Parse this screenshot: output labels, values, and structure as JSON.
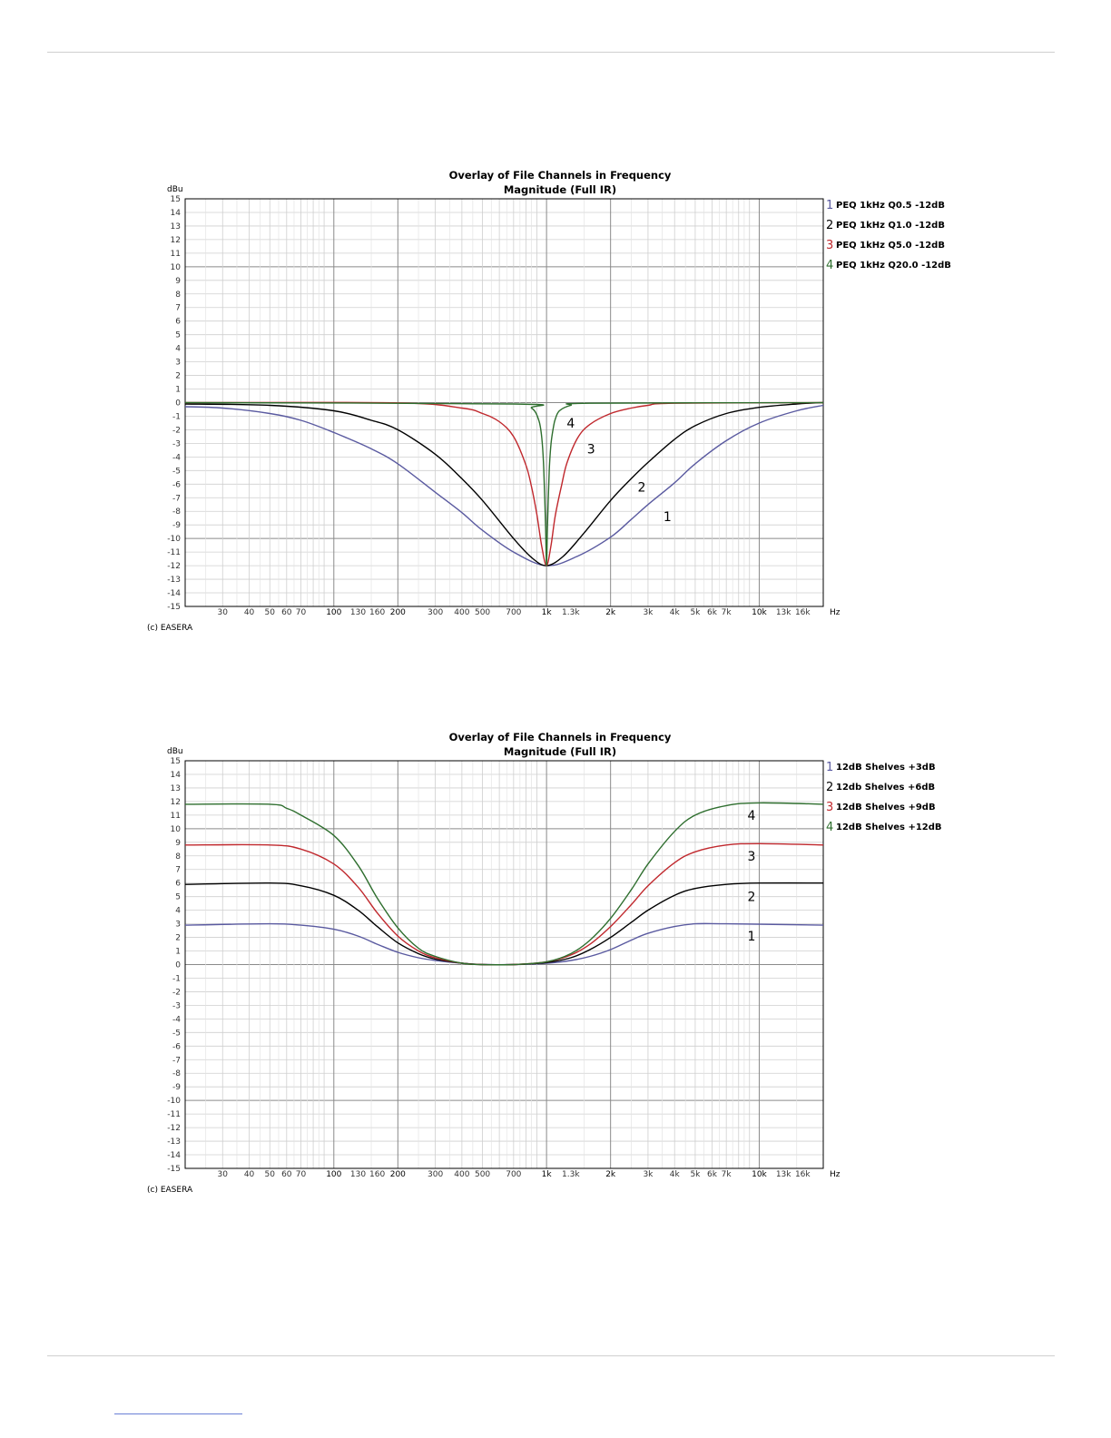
{
  "chart_data": [
    {
      "type": "line",
      "title": "Overlay of File Channels in Frequency",
      "subtitle": "Magnitude (Full IR)",
      "ylabel": "dBu",
      "xlabel": "",
      "x_unit": "Hz",
      "x_scale": "log",
      "xlim": [
        20,
        20000
      ],
      "ylim": [
        -15,
        15
      ],
      "grid": true,
      "legend_position": "right",
      "credit": "(c) EASERA",
      "y_ticks": [
        "15",
        "14",
        "13",
        "12",
        "11",
        "10",
        "9",
        "8",
        "7",
        "6",
        "5",
        "4",
        "3",
        "2",
        "1",
        "0",
        "-1",
        "-2",
        "-3",
        "-4",
        "-5",
        "-6",
        "-7",
        "-8",
        "-9",
        "-10",
        "-11",
        "-12",
        "-13",
        "-14",
        "-15"
      ],
      "x_ticks": [
        {
          "v": 30,
          "label": "30"
        },
        {
          "v": 40,
          "label": "40"
        },
        {
          "v": 50,
          "label": "50"
        },
        {
          "v": 60,
          "label": "60"
        },
        {
          "v": 70,
          "label": "70"
        },
        {
          "v": 100,
          "label": "100",
          "major": true
        },
        {
          "v": 130,
          "label": "130"
        },
        {
          "v": 160,
          "label": "160"
        },
        {
          "v": 200,
          "label": "200",
          "major": true
        },
        {
          "v": 300,
          "label": "300"
        },
        {
          "v": 400,
          "label": "400"
        },
        {
          "v": 500,
          "label": "500"
        },
        {
          "v": 700,
          "label": "700"
        },
        {
          "v": 1000,
          "label": "1k",
          "major": true
        },
        {
          "v": 1300,
          "label": "1.3k"
        },
        {
          "v": 2000,
          "label": "2k",
          "major": true
        },
        {
          "v": 3000,
          "label": "3k"
        },
        {
          "v": 4000,
          "label": "4k"
        },
        {
          "v": 5000,
          "label": "5k"
        },
        {
          "v": 6000,
          "label": "6k"
        },
        {
          "v": 7000,
          "label": "7k"
        },
        {
          "v": 10000,
          "label": "10k",
          "major": true
        },
        {
          "v": 13000,
          "label": "13k"
        },
        {
          "v": 16000,
          "label": "16k"
        }
      ],
      "series": [
        {
          "num": "1",
          "name": "PEQ 1kHz Q0.5 -12dB",
          "color": "#5a5aa0",
          "x": [
            20,
            30,
            50,
            70,
            100,
            150,
            200,
            300,
            400,
            500,
            700,
            1000,
            1400,
            2000,
            2500,
            3000,
            4000,
            5000,
            7000,
            10000,
            15000,
            20000
          ],
          "y": [
            -0.3,
            -0.4,
            -0.8,
            -1.3,
            -2.2,
            -3.4,
            -4.5,
            -6.6,
            -8.1,
            -9.4,
            -11.0,
            -12.0,
            -11.3,
            -9.9,
            -8.6,
            -7.5,
            -5.9,
            -4.5,
            -2.8,
            -1.5,
            -0.6,
            -0.2
          ],
          "label_at": {
            "x": 3700,
            "y": -8.4
          }
        },
        {
          "num": "2",
          "name": "PEQ 1kHz Q1.0 -12dB",
          "color": "#000000",
          "x": [
            20,
            50,
            100,
            150,
            200,
            300,
            400,
            500,
            700,
            850,
            1000,
            1200,
            1500,
            2000,
            2500,
            3000,
            4000,
            5000,
            7000,
            10000,
            15000,
            20000
          ],
          "y": [
            -0.1,
            -0.2,
            -0.6,
            -1.3,
            -2.0,
            -3.8,
            -5.6,
            -7.2,
            -10.0,
            -11.4,
            -12.0,
            -11.3,
            -9.6,
            -7.2,
            -5.6,
            -4.4,
            -2.7,
            -1.7,
            -0.8,
            -0.35,
            -0.1,
            0.0
          ],
          "label_at": {
            "x": 2800,
            "y": -6.2
          }
        },
        {
          "num": "3",
          "name": "PEQ 1kHz Q5.0 -12dB",
          "color": "#c0282d",
          "x": [
            20,
            200,
            400,
            500,
            600,
            700,
            800,
            850,
            900,
            950,
            1000,
            1050,
            1100,
            1180,
            1250,
            1400,
            1600,
            2000,
            2500,
            3000,
            4000,
            20000
          ],
          "y": [
            0.0,
            -0.02,
            -0.4,
            -0.8,
            -1.4,
            -2.5,
            -4.6,
            -6.2,
            -8.2,
            -10.6,
            -12.0,
            -10.5,
            -8.3,
            -6.0,
            -4.4,
            -2.6,
            -1.6,
            -0.8,
            -0.4,
            -0.2,
            -0.05,
            0.0
          ],
          "label_at": {
            "x": 1620,
            "y": -3.4
          }
        },
        {
          "num": "4",
          "name": "PEQ 1kHz Q20.0 -12dB",
          "color": "#2e6e2e",
          "x": [
            20,
            700,
            850,
            920,
            950,
            970,
            990,
            1000,
            1010,
            1030,
            1050,
            1080,
            1100,
            1150,
            1300,
            1600,
            20000
          ],
          "y": [
            0.0,
            -0.1,
            -0.4,
            -1.3,
            -2.6,
            -4.8,
            -9.2,
            -12.0,
            -9.2,
            -5.0,
            -3.0,
            -1.7,
            -1.2,
            -0.6,
            -0.2,
            -0.05,
            0.0
          ],
          "label_at": {
            "x": 1300,
            "y": -1.5
          }
        }
      ]
    },
    {
      "type": "line",
      "title": "Overlay of File Channels in Frequency",
      "subtitle": "Magnitude (Full IR)",
      "ylabel": "dBu",
      "xlabel": "",
      "x_unit": "Hz",
      "x_scale": "log",
      "xlim": [
        20,
        20000
      ],
      "ylim": [
        -15,
        15
      ],
      "grid": true,
      "legend_position": "right",
      "credit": "(c) EASERA",
      "y_ticks": [
        "15",
        "14",
        "13",
        "12",
        "11",
        "10",
        "9",
        "8",
        "7",
        "6",
        "5",
        "4",
        "3",
        "2",
        "1",
        "0",
        "-1",
        "-2",
        "-3",
        "-4",
        "-5",
        "-6",
        "-7",
        "-8",
        "-9",
        "-10",
        "-11",
        "-12",
        "-13",
        "-14",
        "-15"
      ],
      "x_ticks": [
        {
          "v": 30,
          "label": "30"
        },
        {
          "v": 40,
          "label": "40"
        },
        {
          "v": 50,
          "label": "50"
        },
        {
          "v": 60,
          "label": "60"
        },
        {
          "v": 70,
          "label": "70"
        },
        {
          "v": 100,
          "label": "100",
          "major": true
        },
        {
          "v": 130,
          "label": "130"
        },
        {
          "v": 160,
          "label": "160"
        },
        {
          "v": 200,
          "label": "200",
          "major": true
        },
        {
          "v": 300,
          "label": "300"
        },
        {
          "v": 400,
          "label": "400"
        },
        {
          "v": 500,
          "label": "500"
        },
        {
          "v": 700,
          "label": "700"
        },
        {
          "v": 1000,
          "label": "1k",
          "major": true
        },
        {
          "v": 1300,
          "label": "1.3k"
        },
        {
          "v": 2000,
          "label": "2k",
          "major": true
        },
        {
          "v": 3000,
          "label": "3k"
        },
        {
          "v": 4000,
          "label": "4k"
        },
        {
          "v": 5000,
          "label": "5k"
        },
        {
          "v": 6000,
          "label": "6k"
        },
        {
          "v": 7000,
          "label": "7k"
        },
        {
          "v": 10000,
          "label": "10k",
          "major": true
        },
        {
          "v": 13000,
          "label": "13k"
        },
        {
          "v": 16000,
          "label": "16k"
        }
      ],
      "series": [
        {
          "num": "1",
          "name": "12dB Shelves +3dB",
          "color": "#5a5aa0",
          "x": [
            20,
            50,
            70,
            100,
            130,
            160,
            200,
            250,
            300,
            400,
            500,
            700,
            1000,
            1300,
            1600,
            2000,
            2500,
            3000,
            4000,
            5000,
            7000,
            20000
          ],
          "y": [
            2.9,
            3.0,
            2.9,
            2.6,
            2.1,
            1.5,
            0.9,
            0.5,
            0.3,
            0.1,
            0.0,
            0.0,
            0.1,
            0.3,
            0.6,
            1.1,
            1.8,
            2.3,
            2.8,
            3.0,
            3.0,
            2.9
          ],
          "label_at": {
            "x": 9200,
            "y": 2.1
          }
        },
        {
          "num": "2",
          "name": "12db Shelves +6dB",
          "color": "#000000",
          "x": [
            20,
            50,
            70,
            100,
            130,
            160,
            200,
            250,
            300,
            400,
            500,
            700,
            1000,
            1300,
            1600,
            2000,
            2500,
            3000,
            4000,
            5000,
            7000,
            10000,
            20000
          ],
          "y": [
            5.9,
            6.0,
            5.8,
            5.1,
            4.0,
            2.8,
            1.6,
            0.8,
            0.4,
            0.1,
            0.0,
            0.0,
            0.15,
            0.5,
            1.1,
            2.0,
            3.1,
            4.0,
            5.1,
            5.6,
            5.9,
            6.0,
            6.0
          ],
          "label_at": {
            "x": 9200,
            "y": 5.0
          }
        },
        {
          "num": "3",
          "name": "12dB Shelves +9dB",
          "color": "#c0282d",
          "x": [
            20,
            50,
            70,
            100,
            130,
            160,
            200,
            250,
            300,
            400,
            500,
            700,
            1000,
            1300,
            1600,
            2000,
            2500,
            3000,
            4000,
            5000,
            7000,
            10000,
            20000
          ],
          "y": [
            8.8,
            8.8,
            8.5,
            7.4,
            5.7,
            3.8,
            2.1,
            1.0,
            0.5,
            0.1,
            0.0,
            0.0,
            0.2,
            0.7,
            1.5,
            2.8,
            4.4,
            5.8,
            7.5,
            8.3,
            8.8,
            8.9,
            8.8
          ],
          "label_at": {
            "x": 9200,
            "y": 8.0
          }
        },
        {
          "num": "4",
          "name": "12dB Shelves +12dB",
          "color": "#2e6e2e",
          "x": [
            20,
            50,
            60,
            70,
            100,
            130,
            160,
            200,
            250,
            300,
            400,
            500,
            700,
            1000,
            1300,
            1600,
            2000,
            2500,
            3000,
            4000,
            5000,
            7000,
            10000,
            20000
          ],
          "y": [
            11.8,
            11.8,
            11.5,
            11.0,
            9.5,
            7.3,
            4.9,
            2.7,
            1.2,
            0.6,
            0.1,
            0.0,
            0.0,
            0.2,
            0.8,
            1.8,
            3.4,
            5.5,
            7.4,
            9.8,
            11.0,
            11.7,
            11.9,
            11.8
          ],
          "label_at": {
            "x": 9200,
            "y": 11.0
          }
        }
      ]
    }
  ]
}
